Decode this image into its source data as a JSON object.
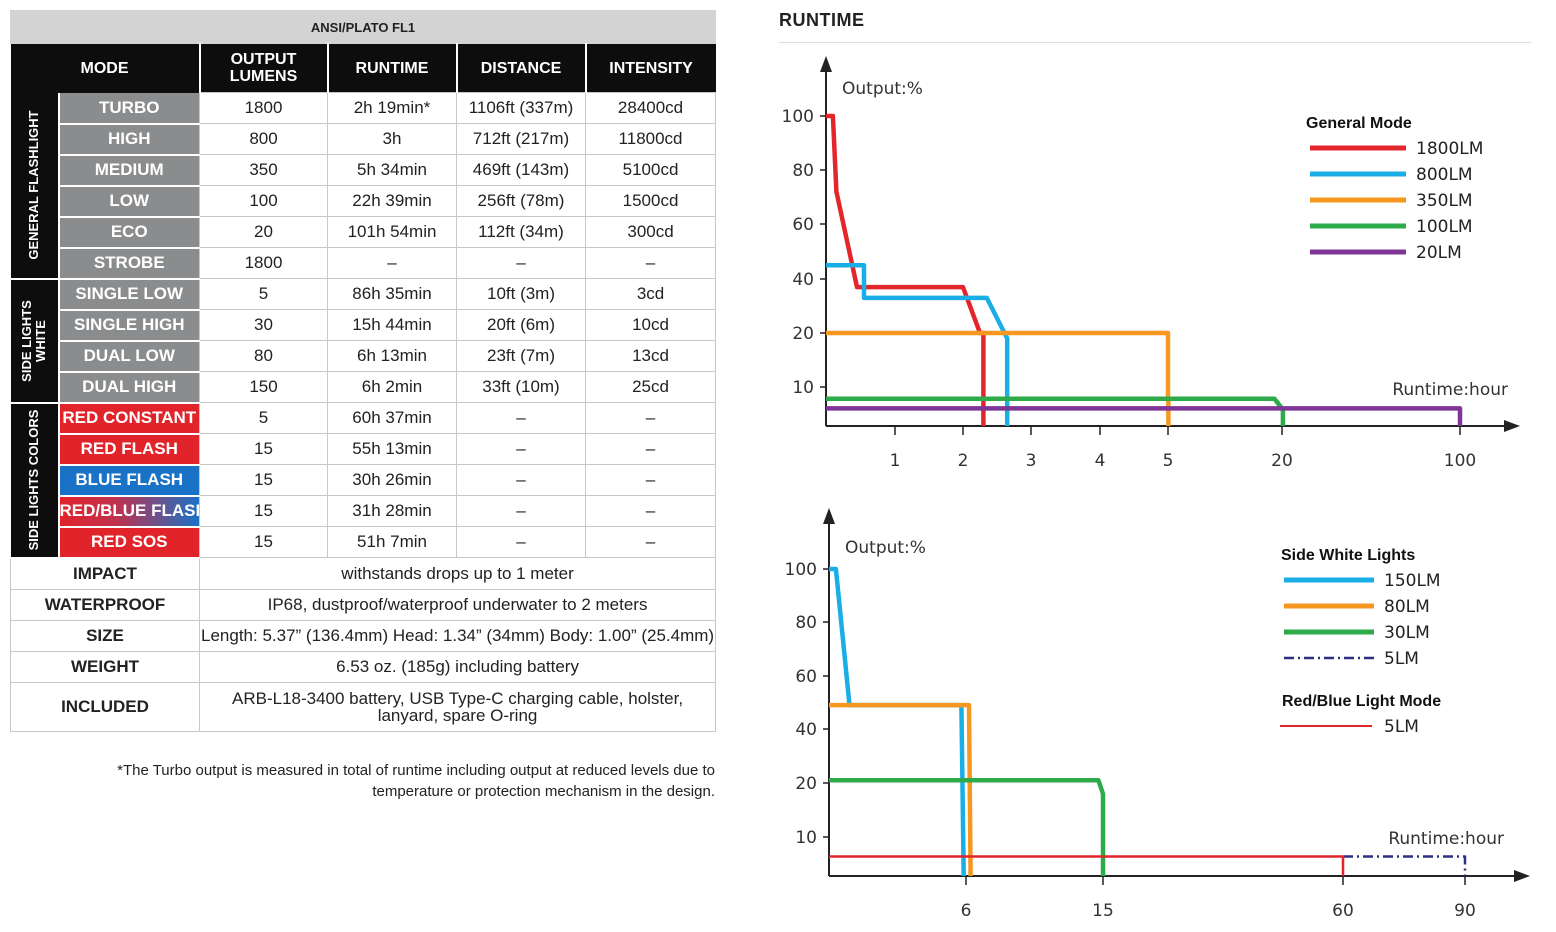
{
  "table": {
    "title": "ANSI/PLATO FL1",
    "headers": [
      "MODE",
      "OUTPUT LUMENS",
      "RUNTIME",
      "DISTANCE",
      "INTENSITY"
    ],
    "groups": [
      {
        "label": "GENERAL FLASHLIGHT",
        "rows": [
          {
            "mode": "TURBO",
            "lumens": "1800",
            "runtime": "2h 19min*",
            "distance": "1106ft (337m)",
            "intensity": "28400cd"
          },
          {
            "mode": "HIGH",
            "lumens": "800",
            "runtime": "3h",
            "distance": "712ft (217m)",
            "intensity": "11800cd"
          },
          {
            "mode": "MEDIUM",
            "lumens": "350",
            "runtime": "5h 34min",
            "distance": "469ft (143m)",
            "intensity": "5100cd"
          },
          {
            "mode": "LOW",
            "lumens": "100",
            "runtime": "22h 39min",
            "distance": "256ft (78m)",
            "intensity": "1500cd"
          },
          {
            "mode": "ECO",
            "lumens": "20",
            "runtime": "101h 54min",
            "distance": "112ft (34m)",
            "intensity": "300cd"
          },
          {
            "mode": "STROBE",
            "lumens": "1800",
            "runtime": "–",
            "distance": "–",
            "intensity": "–"
          }
        ]
      },
      {
        "label": "SIDE LIGHTS WHITE",
        "rows": [
          {
            "mode": "SINGLE LOW",
            "lumens": "5",
            "runtime": "86h 35min",
            "distance": "10ft (3m)",
            "intensity": "3cd"
          },
          {
            "mode": "SINGLE HIGH",
            "lumens": "30",
            "runtime": "15h 44min",
            "distance": "20ft (6m)",
            "intensity": "10cd"
          },
          {
            "mode": "DUAL LOW",
            "lumens": "80",
            "runtime": "6h 13min",
            "distance": "23ft (7m)",
            "intensity": "13cd"
          },
          {
            "mode": "DUAL HIGH",
            "lumens": "150",
            "runtime": "6h 2min",
            "distance": "33ft (10m)",
            "intensity": "25cd"
          }
        ]
      },
      {
        "label": "SIDE LIGHTS COLORS",
        "rows": [
          {
            "mode": "RED CONSTANT",
            "color": "#e1232a",
            "lumens": "5",
            "runtime": "60h 37min",
            "distance": "–",
            "intensity": "–"
          },
          {
            "mode": "RED FLASH",
            "color": "#e1232a",
            "lumens": "15",
            "runtime": "55h 13min",
            "distance": "–",
            "intensity": "–"
          },
          {
            "mode": "BLUE FLASH",
            "color": "#1a72c6",
            "lumens": "15",
            "runtime": "30h 26min",
            "distance": "–",
            "intensity": "–"
          },
          {
            "mode": "RED/BLUE FLASH",
            "color": "gradient",
            "lumens": "15",
            "runtime": "31h 28min",
            "distance": "–",
            "intensity": "–"
          },
          {
            "mode": "RED SOS",
            "color": "#e1232a",
            "lumens": "15",
            "runtime": "51h 7min",
            "distance": "–",
            "intensity": "–"
          }
        ]
      }
    ],
    "specs": [
      {
        "label": "IMPACT",
        "value": "withstands drops up to 1 meter"
      },
      {
        "label": "WATERPROOF",
        "value": "IP68, dustproof/waterproof underwater to 2 meters"
      },
      {
        "label": "SIZE",
        "value": "Length: 5.37” (136.4mm) Head: 1.34” (34mm) Body: 1.00” (25.4mm)"
      },
      {
        "label": "WEIGHT",
        "value": "6.53 oz. (185g) including battery"
      },
      {
        "label": "INCLUDED",
        "value": "ARB-L18-3400 battery, USB Type-C charging cable, holster, lanyard, spare O-ring"
      }
    ],
    "footnote": "*The Turbo output is measured in total of runtime including output at reduced levels due to temperature or protection mechanism in the design."
  },
  "runtime_title": "RUNTIME",
  "colors": {
    "red": "#e3262b",
    "blue": "#19aee6",
    "orange": "#f6981f",
    "green": "#2daa4a",
    "purple": "#7f3596",
    "navy": "#2b2e83",
    "thinred": "#e0252b"
  },
  "chart_data": [
    {
      "type": "line",
      "title": "",
      "ylabel": "Output:%",
      "xlabel": "Runtime:hour",
      "x_scale": "non-linear (categorical ticks)",
      "x_ticks": [
        "1",
        "2",
        "3",
        "4",
        "5",
        "20",
        "100"
      ],
      "y_ticks": [
        "10",
        "20",
        "40",
        "60",
        "80",
        "100"
      ],
      "legend_title": "General Mode",
      "legend_position": "top-right",
      "series": [
        {
          "name": "1800LM",
          "color": "red",
          "points": [
            [
              0,
              100
            ],
            [
              0.1,
              100
            ],
            [
              0.15,
              72
            ],
            [
              0.45,
              37
            ],
            [
              2,
              37
            ],
            [
              2.25,
              20
            ],
            [
              2.3,
              20
            ],
            [
              2.3,
              0
            ]
          ]
        },
        {
          "name": "800LM",
          "color": "blue",
          "points": [
            [
              0,
              45
            ],
            [
              0.55,
              45
            ],
            [
              0.55,
              33
            ],
            [
              2.35,
              33
            ],
            [
              2.65,
              19
            ],
            [
              2.65,
              0
            ]
          ]
        },
        {
          "name": "350LM",
          "color": "orange",
          "points": [
            [
              0,
              20
            ],
            [
              5,
              20
            ],
            [
              5,
              7
            ],
            [
              5.05,
              7
            ],
            [
              5.05,
              0
            ]
          ]
        },
        {
          "name": "100LM",
          "color": "green",
          "points": [
            [
              0,
              7
            ],
            [
              19,
              7
            ],
            [
              20,
              4.5
            ],
            [
              20.4,
              4.5
            ],
            [
              20.4,
              0
            ]
          ]
        },
        {
          "name": "20LM",
          "color": "purple",
          "points": [
            [
              0,
              4.5
            ],
            [
              100,
              4.5
            ],
            [
              100,
              0
            ]
          ]
        }
      ]
    },
    {
      "type": "line",
      "title": "",
      "ylabel": "Output:%",
      "xlabel": "Runtime:hour",
      "x_scale": "non-linear (categorical ticks)",
      "x_ticks": [
        "6",
        "15",
        "60",
        "90"
      ],
      "y_ticks": [
        "10",
        "20",
        "40",
        "60",
        "80",
        "100"
      ],
      "legend_position": "top-right",
      "legend_groups": [
        {
          "title": "Side White Lights",
          "items": [
            {
              "name": "150LM",
              "color": "blue",
              "style": "solid"
            },
            {
              "name": "80LM",
              "color": "orange",
              "style": "solid"
            },
            {
              "name": "30LM",
              "color": "green",
              "style": "solid"
            },
            {
              "name": "5LM",
              "color": "navy",
              "style": "dashdot"
            }
          ]
        },
        {
          "title": "Red/Blue Light Mode",
          "items": [
            {
              "name": "5LM",
              "color": "thinred",
              "style": "thin"
            }
          ]
        }
      ],
      "series": [
        {
          "name": "150LM",
          "color": "blue",
          "points": [
            [
              0,
              100
            ],
            [
              0.3,
              100
            ],
            [
              0.9,
              49
            ],
            [
              5.8,
              49
            ],
            [
              5.9,
              0
            ]
          ]
        },
        {
          "name": "80LM",
          "color": "orange",
          "points": [
            [
              0,
              49
            ],
            [
              6.2,
              49
            ],
            [
              6.3,
              0
            ]
          ]
        },
        {
          "name": "30LM",
          "color": "green",
          "points": [
            [
              0,
              21
            ],
            [
              14.7,
              21
            ],
            [
              15,
              18
            ],
            [
              15,
              0
            ]
          ]
        },
        {
          "name": "5LM (white)",
          "color": "navy",
          "style": "dashdot",
          "points": [
            [
              60,
              5
            ],
            [
              90,
              5
            ],
            [
              90,
              0
            ]
          ]
        },
        {
          "name": "5LM (red)",
          "color": "thinred",
          "style": "thin",
          "points": [
            [
              0,
              5
            ],
            [
              60,
              5
            ],
            [
              60,
              0
            ]
          ]
        }
      ]
    }
  ]
}
